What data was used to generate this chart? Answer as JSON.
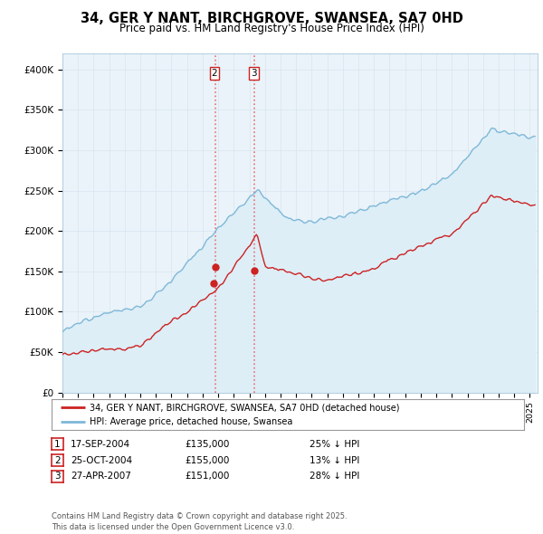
{
  "title": "34, GER Y NANT, BIRCHGROVE, SWANSEA, SA7 0HD",
  "subtitle": "Price paid vs. HM Land Registry's House Price Index (HPI)",
  "ylabel_ticks": [
    "£0",
    "£50K",
    "£100K",
    "£150K",
    "£200K",
    "£250K",
    "£300K",
    "£350K",
    "£400K"
  ],
  "ytick_vals": [
    0,
    50000,
    100000,
    150000,
    200000,
    250000,
    300000,
    350000,
    400000
  ],
  "ylim": [
    0,
    420000
  ],
  "xlim_start": 1995.0,
  "xlim_end": 2025.5,
  "hpi_color": "#7fb8d8",
  "hpi_fill_color": "#ddeef7",
  "price_color": "#cc2222",
  "legend_label_red": "34, GER Y NANT, BIRCHGROVE, SWANSEA, SA7 0HD (detached house)",
  "legend_label_blue": "HPI: Average price, detached house, Swansea",
  "transactions": [
    {
      "num": 1,
      "date": "17-SEP-2004",
      "price": 135000,
      "pct": "25% ↓ HPI",
      "x": 2004.71
    },
    {
      "num": 2,
      "date": "25-OCT-2004",
      "price": 155000,
      "pct": "13% ↓ HPI",
      "x": 2004.81
    },
    {
      "num": 3,
      "date": "27-APR-2007",
      "price": 151000,
      "pct": "28% ↓ HPI",
      "x": 2007.32
    }
  ],
  "footer": "Contains HM Land Registry data © Crown copyright and database right 2025.\nThis data is licensed under the Open Government Licence v3.0.",
  "background_color": "#ffffff",
  "grid_color": "#d8e4f0"
}
